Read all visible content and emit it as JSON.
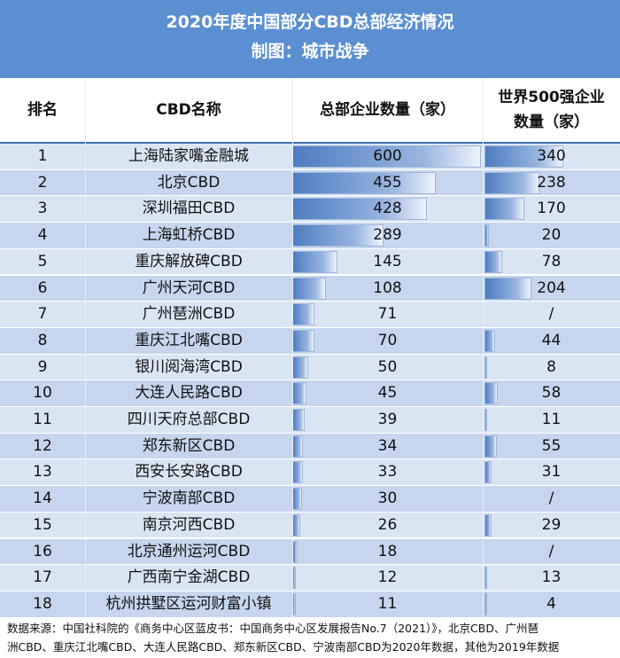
{
  "header": {
    "title": "2020年度中国部分CBD总部经济情况",
    "subtitle": "制图：城市战争"
  },
  "columns": {
    "rank": "排名",
    "name": "CBD名称",
    "hq": "总部企业数量（家）",
    "f500_line1": "世界500强企业",
    "f500_line2": "数量（家）"
  },
  "footer": {
    "line1": "数据来源：中国社科院的《商务中心区蓝皮书：中国商务中心区发展报告No.7（2021）》，北京CBD、广州琶",
    "line2": "洲CBD、重庆江北嘴CBD、大连人民路CBD、郑东新区CBD、宁波南部CBD为2020年数据，其他为2019年数据"
  },
  "chart_data": {
    "type": "table",
    "title": "2020年度中国部分CBD总部经济情况",
    "columns": [
      "排名",
      "CBD名称",
      "总部企业数量（家）",
      "世界500强企业数量（家）"
    ],
    "rows": [
      {
        "rank": "1",
        "name": "上海陆家嘴金融城",
        "hq": 600,
        "f500": "340"
      },
      {
        "rank": "2",
        "name": "北京CBD",
        "hq": 455,
        "f500": "238"
      },
      {
        "rank": "3",
        "name": "深圳福田CBD",
        "hq": 428,
        "f500": "170"
      },
      {
        "rank": "4",
        "name": "上海虹桥CBD",
        "hq": 289,
        "f500": "20"
      },
      {
        "rank": "5",
        "name": "重庆解放碑CBD",
        "hq": 145,
        "f500": "78"
      },
      {
        "rank": "6",
        "name": "广州天河CBD",
        "hq": 108,
        "f500": "204"
      },
      {
        "rank": "7",
        "name": "广州琶洲CBD",
        "hq": 71,
        "f500": "/"
      },
      {
        "rank": "8",
        "name": "重庆江北嘴CBD",
        "hq": 70,
        "f500": "44"
      },
      {
        "rank": "9",
        "name": "银川阅海湾CBD",
        "hq": 50,
        "f500": "8"
      },
      {
        "rank": "10",
        "name": "大连人民路CBD",
        "hq": 45,
        "f500": "58"
      },
      {
        "rank": "11",
        "name": "四川天府总部CBD",
        "hq": 39,
        "f500": "11"
      },
      {
        "rank": "12",
        "name": "郑东新区CBD",
        "hq": 34,
        "f500": "55"
      },
      {
        "rank": "13",
        "name": "西安长安路CBD",
        "hq": 33,
        "f500": "31"
      },
      {
        "rank": "14",
        "name": "宁波南部CBD",
        "hq": 30,
        "f500": "/"
      },
      {
        "rank": "15",
        "name": "南京河西CBD",
        "hq": 26,
        "f500": "29"
      },
      {
        "rank": "16",
        "name": "北京通州运河CBD",
        "hq": 18,
        "f500": "/"
      },
      {
        "rank": "17",
        "name": "广西南宁金湖CBD",
        "hq": 12,
        "f500": "13"
      },
      {
        "rank": "18",
        "name": "杭州拱墅区运河财富小镇",
        "hq": 11,
        "f500": "4"
      }
    ]
  }
}
